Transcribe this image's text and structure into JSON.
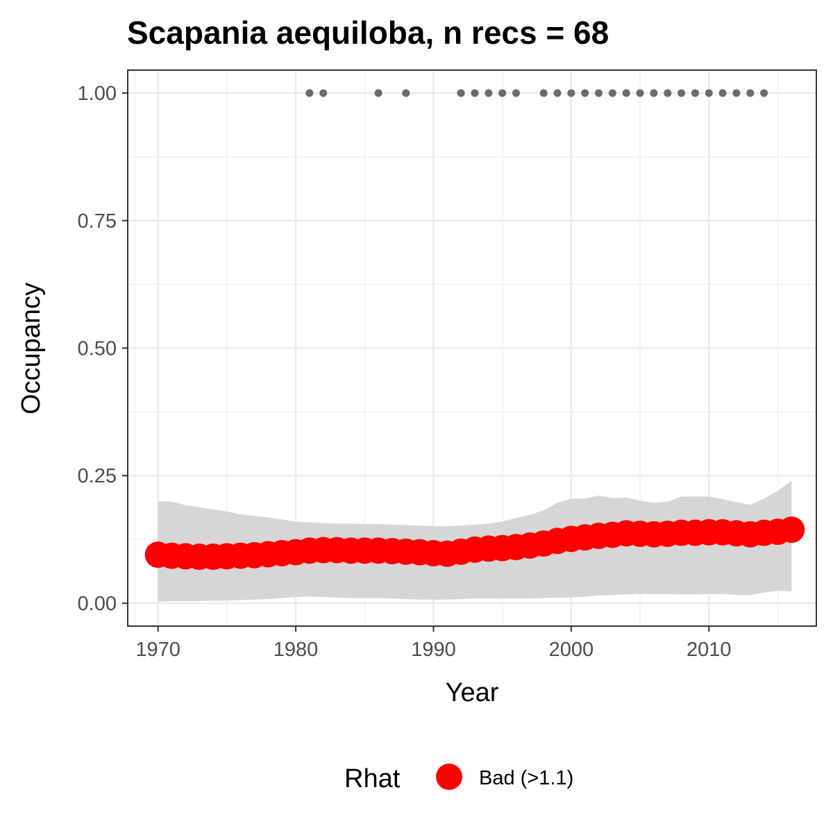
{
  "chart_data": {
    "type": "line",
    "title": "Scapania aequiloba, n recs = 68",
    "xlabel": "Year",
    "ylabel": "Occupancy",
    "xlim": [
      1967.8,
      2017.8
    ],
    "ylim": [
      -0.045,
      1.045
    ],
    "x_ticks": [
      1970,
      1980,
      1990,
      2000,
      2010
    ],
    "x_tick_labels": [
      "1970",
      "1980",
      "1990",
      "2000",
      "2010"
    ],
    "y_ticks": [
      0,
      0.25,
      0.5,
      0.75,
      1.0
    ],
    "y_tick_labels": [
      "0.00",
      "0.25",
      "0.50",
      "0.75",
      "1.00"
    ],
    "grid": true,
    "legend_position": "bottom",
    "legend_title": "Rhat",
    "legend_entries": [
      {
        "label": "Bad (>1.1)",
        "color": "#ff0000"
      }
    ],
    "colors": {
      "estimate": "#ff0000",
      "ribbon": "#d6d6d6",
      "records": "#6b6b6b",
      "grid": "#ebebeb",
      "panel_border": "#333333"
    },
    "series": [
      {
        "name": "Bad (>1.1)",
        "x": [
          1970,
          1971,
          1972,
          1973,
          1974,
          1975,
          1976,
          1977,
          1978,
          1979,
          1980,
          1981,
          1982,
          1983,
          1984,
          1985,
          1986,
          1987,
          1988,
          1989,
          1990,
          1991,
          1992,
          1993,
          1994,
          1995,
          1996,
          1997,
          1998,
          1999,
          2000,
          2001,
          2002,
          2003,
          2004,
          2005,
          2006,
          2007,
          2008,
          2009,
          2010,
          2011,
          2012,
          2013,
          2014,
          2015,
          2016
        ],
        "y": [
          0.095,
          0.093,
          0.092,
          0.091,
          0.091,
          0.092,
          0.093,
          0.094,
          0.096,
          0.098,
          0.1,
          0.103,
          0.104,
          0.104,
          0.103,
          0.103,
          0.103,
          0.102,
          0.101,
          0.1,
          0.098,
          0.097,
          0.101,
          0.105,
          0.107,
          0.108,
          0.11,
          0.113,
          0.117,
          0.122,
          0.126,
          0.129,
          0.132,
          0.134,
          0.137,
          0.136,
          0.135,
          0.136,
          0.138,
          0.138,
          0.139,
          0.139,
          0.137,
          0.135,
          0.138,
          0.14,
          0.144
        ],
        "lower": [
          0.003,
          0.004,
          0.004,
          0.004,
          0.005,
          0.005,
          0.006,
          0.007,
          0.008,
          0.01,
          0.012,
          0.013,
          0.012,
          0.011,
          0.01,
          0.01,
          0.01,
          0.009,
          0.008,
          0.007,
          0.007,
          0.007,
          0.008,
          0.009,
          0.009,
          0.009,
          0.009,
          0.009,
          0.01,
          0.011,
          0.011,
          0.013,
          0.015,
          0.016,
          0.017,
          0.018,
          0.018,
          0.018,
          0.017,
          0.017,
          0.018,
          0.018,
          0.016,
          0.016,
          0.021,
          0.024,
          0.023
        ],
        "upper": [
          0.2,
          0.199,
          0.192,
          0.188,
          0.184,
          0.18,
          0.174,
          0.171,
          0.168,
          0.164,
          0.16,
          0.158,
          0.157,
          0.156,
          0.156,
          0.155,
          0.155,
          0.154,
          0.153,
          0.152,
          0.151,
          0.151,
          0.152,
          0.154,
          0.156,
          0.16,
          0.167,
          0.173,
          0.182,
          0.197,
          0.205,
          0.205,
          0.211,
          0.206,
          0.207,
          0.201,
          0.197,
          0.199,
          0.209,
          0.209,
          0.209,
          0.204,
          0.198,
          0.193,
          0.205,
          0.22,
          0.24
        ]
      }
    ],
    "records": {
      "x": [
        1981,
        1982,
        1986,
        1988,
        1992,
        1993,
        1994,
        1995,
        1996,
        1998,
        1999,
        2000,
        2001,
        2002,
        2003,
        2004,
        2005,
        2006,
        2007,
        2008,
        2009,
        2010,
        2011,
        2012,
        2013,
        2014
      ],
      "y": 1.0
    }
  }
}
